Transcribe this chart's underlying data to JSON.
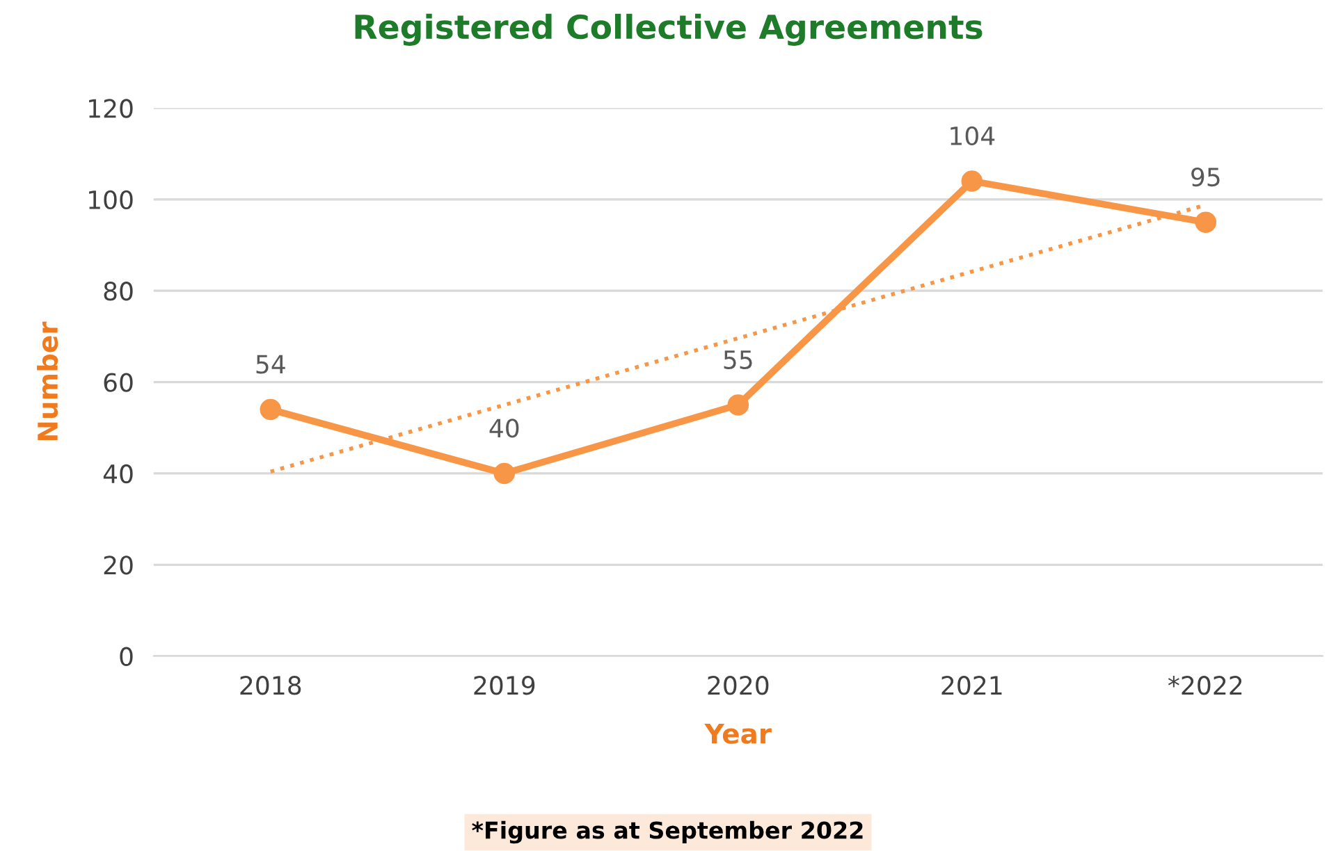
{
  "chart_data": {
    "type": "line",
    "title": "Registered Collective Agreements",
    "xlabel": "Year",
    "ylabel": "Number",
    "categories": [
      "2018",
      "2019",
      "2020",
      "2021",
      "*2022"
    ],
    "series": [
      {
        "color": "#f79646",
        "values": [
          54,
          40,
          55,
          104,
          95
        ],
        "value_labels": [
          "54",
          "40",
          "55",
          "104",
          "95"
        ],
        "marker": "circle",
        "line_style": "solid"
      },
      {
        "type": "line",
        "color": "#f79646",
        "values": [
          40.4,
          55.0,
          69.6,
          84.2,
          98.8
        ],
        "marker": "none",
        "line_style": "dotted"
      }
    ],
    "ylim": [
      0,
      120
    ],
    "yticks": [
      0,
      20,
      40,
      60,
      80,
      100,
      120
    ],
    "grid": "y",
    "legend": false,
    "annotations": [
      "*Figure as at September 2022"
    ]
  }
}
